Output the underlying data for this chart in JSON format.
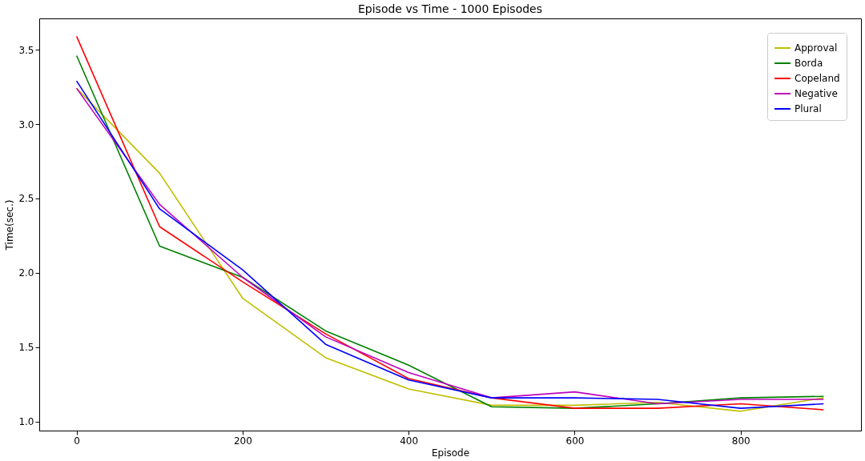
{
  "chart_data": {
    "type": "line",
    "title": "Episode vs Time - 1000 Episodes",
    "xlabel": "Episode",
    "ylabel": "Time(sec.)",
    "x": [
      0,
      100,
      200,
      300,
      400,
      500,
      600,
      700,
      800,
      900
    ],
    "xlim": [
      -45,
      945
    ],
    "xticks": [
      0,
      200,
      400,
      600,
      800
    ],
    "ylim": [
      0.94,
      3.71
    ],
    "yticks": [
      {
        "value": 1,
        "label": "1.0"
      },
      1.5,
      {
        "value": 2,
        "label": "2.0"
      },
      2.5,
      {
        "value": 3,
        "label": "3.0"
      },
      3.5
    ],
    "grid": false,
    "legend": "top right",
    "marker": "none",
    "line_style": "solid",
    "series": [
      {
        "name": "Approval",
        "color": "#bfbf00",
        "values": [
          3.24,
          2.67,
          1.83,
          1.43,
          1.22,
          1.11,
          1.11,
          1.13,
          1.07,
          1.16
        ]
      },
      {
        "name": "Borda",
        "color": "#008000",
        "values": [
          3.46,
          2.18,
          1.97,
          1.61,
          1.38,
          1.1,
          1.09,
          1.12,
          1.16,
          1.17
        ]
      },
      {
        "name": "Copeland",
        "color": "#ff0000",
        "values": [
          3.59,
          2.31,
          1.94,
          1.59,
          1.29,
          1.16,
          1.09,
          1.09,
          1.12,
          1.08
        ]
      },
      {
        "name": "Negative",
        "color": "#bf00bf",
        "values": [
          3.24,
          2.46,
          1.97,
          1.57,
          1.33,
          1.16,
          1.2,
          1.12,
          1.15,
          1.15
        ]
      },
      {
        "name": "Plural",
        "color": "#0000ff",
        "values": [
          3.29,
          2.43,
          2.02,
          1.52,
          1.28,
          1.16,
          1.16,
          1.15,
          1.09,
          1.12
        ]
      }
    ]
  }
}
